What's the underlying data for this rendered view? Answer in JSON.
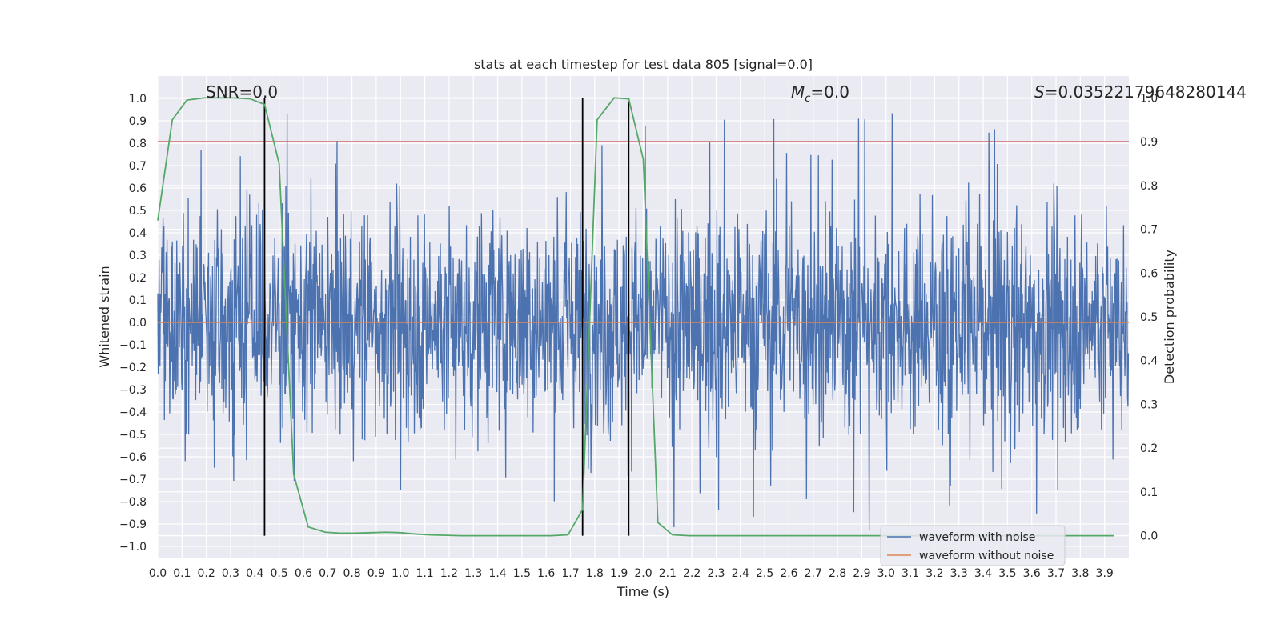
{
  "chart_data": {
    "type": "line",
    "title": "stats at each timestep for test data 805 [signal=0.0]",
    "xlabel": "Time (s)",
    "ylabel": "Whitened strain",
    "ylabel_right": "Detection probability",
    "xlim": [
      0.0,
      4.0
    ],
    "ylim": [
      -1.05,
      1.1
    ],
    "ylim_right": [
      -0.05,
      1.05
    ],
    "x_ticks": [
      "0.0",
      "0.1",
      "0.2",
      "0.3",
      "0.4",
      "0.5",
      "0.6",
      "0.7",
      "0.8",
      "0.9",
      "1.0",
      "1.1",
      "1.2",
      "1.3",
      "1.4",
      "1.5",
      "1.6",
      "1.7",
      "1.8",
      "1.9",
      "2.0",
      "2.1",
      "2.2",
      "2.3",
      "2.4",
      "2.5",
      "2.6",
      "2.7",
      "2.8",
      "2.9",
      "3.0",
      "3.1",
      "3.2",
      "3.3",
      "3.4",
      "3.5",
      "3.6",
      "3.7",
      "3.8",
      "3.9"
    ],
    "y_ticks": [
      "1.0",
      "0.9",
      "0.8",
      "0.7",
      "0.6",
      "0.5",
      "0.4",
      "0.3",
      "0.2",
      "0.1",
      "0.0",
      "−0.1",
      "−0.2",
      "−0.3",
      "−0.4",
      "−0.5",
      "−0.6",
      "−0.7",
      "−0.8",
      "−0.9",
      "−1.0"
    ],
    "y_ticks_right": [
      "1.0",
      "0.9",
      "0.8",
      "0.7",
      "0.6",
      "0.5",
      "0.4",
      "0.3",
      "0.2",
      "0.1",
      "0.0"
    ],
    "annotations": {
      "snr": "SNR=0.0",
      "mc_symbol": "M",
      "mc_sub": "c",
      "mc_value": "=0.0",
      "s_symbol": "S",
      "s_value": "=0.03522179648280144"
    },
    "threshold_line": {
      "y_right": 0.9,
      "color": "#c44e52"
    },
    "vertical_lines_x": [
      0.44,
      1.75,
      1.94
    ],
    "grid": true,
    "legend_placement": "lower-right",
    "series": [
      {
        "name": "waveform with noise",
        "color": "#4c72b0",
        "kind": "noise",
        "envelope": 0.6,
        "peak_abs_max": 1.0
      },
      {
        "name": "waveform without noise",
        "color": "#dd8452",
        "kind": "flat",
        "value": 0.0
      },
      {
        "color": "#55a868",
        "axis": "right",
        "x": [
          0.0,
          0.06,
          0.12,
          0.19,
          0.25,
          0.31,
          0.38,
          0.44,
          0.5,
          0.56,
          0.62,
          0.69,
          0.75,
          0.81,
          0.88,
          0.94,
          1.0,
          1.06,
          1.12,
          1.19,
          1.25,
          1.31,
          1.38,
          1.44,
          1.5,
          1.56,
          1.62,
          1.69,
          1.75,
          1.81,
          1.88,
          1.94,
          2.0,
          2.06,
          2.12,
          2.19,
          2.25,
          2.5,
          3.0,
          3.5,
          3.94
        ],
        "y": [
          0.72,
          0.95,
          0.995,
          1.0,
          1.0,
          1.0,
          0.998,
          0.985,
          0.85,
          0.14,
          0.02,
          0.008,
          0.006,
          0.006,
          0.007,
          0.008,
          0.007,
          0.004,
          0.002,
          0.001,
          0.0,
          0.0,
          0.0,
          0.0,
          0.0,
          0.0,
          0.0,
          0.002,
          0.06,
          0.95,
          1.0,
          0.998,
          0.86,
          0.03,
          0.002,
          0.0,
          0.0,
          0.0,
          0.0,
          0.0,
          0.0
        ]
      }
    ]
  }
}
